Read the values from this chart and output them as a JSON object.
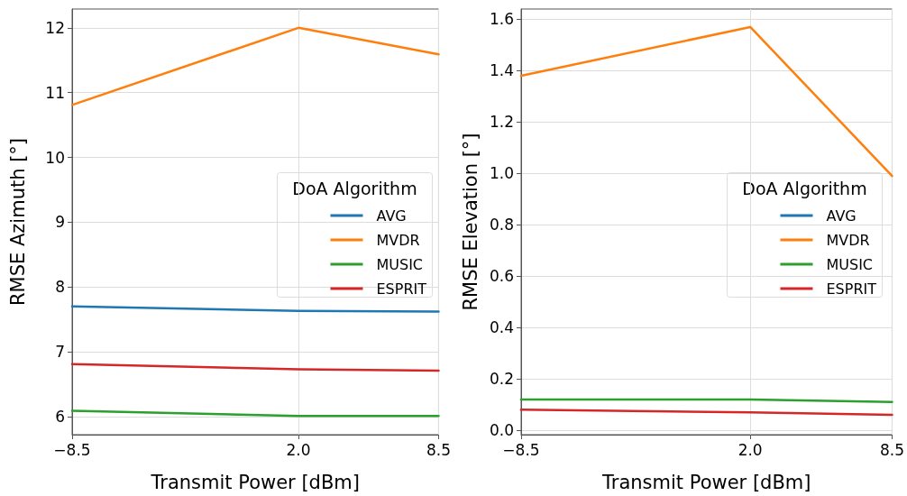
{
  "chart_data": [
    {
      "type": "line",
      "xlabel": "Transmit Power [dBm]",
      "ylabel": "RMSE Azimuth [°]",
      "legend_title": "DoA Algorithm",
      "legend": "center right",
      "grid": true,
      "marker": "none",
      "line_style": "solid",
      "x": [
        -8.5,
        2.0,
        8.5
      ],
      "xlim": [
        -8.5,
        8.5
      ],
      "xticks": [
        {
          "value": -8.5,
          "label": "−8.5"
        },
        {
          "value": 2,
          "label": "2.0"
        },
        {
          "value": 8.5,
          "label": "8.5"
        }
      ],
      "ylim": [
        5.72,
        12.29
      ],
      "yticks": [
        6,
        7,
        8,
        9,
        10,
        11,
        12
      ],
      "series": [
        {
          "name": "AVG",
          "color": "#1f77b4",
          "values": [
            7.7,
            7.63,
            7.62
          ]
        },
        {
          "name": "MVDR",
          "color": "#ff7f0e",
          "values": [
            10.81,
            12.0,
            11.59
          ]
        },
        {
          "name": "MUSIC",
          "color": "#2ca02c",
          "values": [
            6.09,
            6.01,
            6.01
          ]
        },
        {
          "name": "ESPRIT",
          "color": "#d62728",
          "values": [
            6.81,
            6.73,
            6.71
          ]
        }
      ]
    },
    {
      "type": "line",
      "xlabel": "Transmit Power [dBm]",
      "ylabel": "RMSE Elevation [°]",
      "legend_title": "DoA Algorithm",
      "legend": "center right",
      "grid": true,
      "marker": "none",
      "line_style": "solid",
      "x": [
        -8.5,
        2.0,
        8.5
      ],
      "xlim": [
        -8.5,
        8.5
      ],
      "xticks": [
        {
          "value": -8.5,
          "label": "−8.5"
        },
        {
          "value": 2,
          "label": "2.0"
        },
        {
          "value": 8.5,
          "label": "8.5"
        }
      ],
      "ylim": [
        -0.017,
        1.64
      ],
      "yticks": [
        {
          "value": 0,
          "label": "0.0"
        },
        0.2,
        0.4,
        0.6,
        0.8,
        {
          "value": 1,
          "label": "1.0"
        },
        1.2,
        1.4,
        1.6
      ],
      "series": [
        {
          "name": "AVG",
          "color": "#1f77b4",
          "values": [
            null,
            null,
            null
          ]
        },
        {
          "name": "MVDR",
          "color": "#ff7f0e",
          "values": [
            1.38,
            1.57,
            0.99
          ]
        },
        {
          "name": "MUSIC",
          "color": "#2ca02c",
          "values": [
            0.12,
            0.12,
            0.11
          ]
        },
        {
          "name": "ESPRIT",
          "color": "#d62728",
          "values": [
            0.08,
            0.07,
            0.06
          ]
        }
      ]
    }
  ]
}
